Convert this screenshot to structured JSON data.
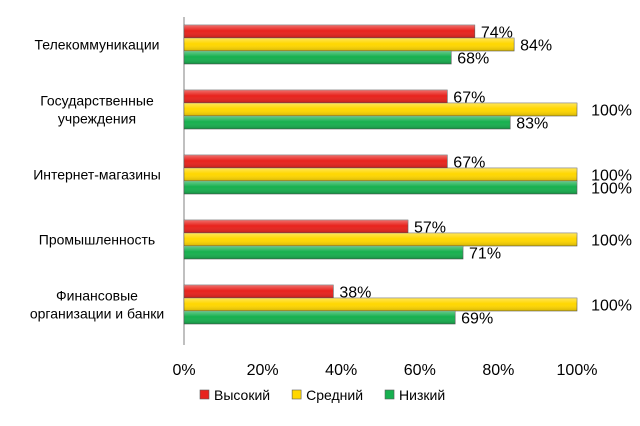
{
  "chart_data": {
    "type": "bar",
    "orientation": "horizontal",
    "categories": [
      [
        "Телекоммуникации"
      ],
      [
        "Государственные",
        "учреждения"
      ],
      [
        "Интернет-магазины"
      ],
      [
        "Промышленность"
      ],
      [
        "Финансовые",
        "организации и банки"
      ]
    ],
    "series": [
      {
        "name": "Высокий",
        "values": [
          74,
          67,
          67,
          57,
          38
        ],
        "color": "#e8231d"
      },
      {
        "name": "Средний",
        "values": [
          84,
          100,
          100,
          100,
          100
        ],
        "color": "#ffd700"
      },
      {
        "name": "Низкий",
        "values": [
          68,
          83,
          100,
          71,
          69
        ],
        "color": "#17b04f"
      }
    ],
    "xlim": [
      0,
      100
    ],
    "xticks": [
      0,
      20,
      40,
      60,
      80,
      100
    ],
    "tick_suffix": "%",
    "grid": false,
    "legend_position": "bottom"
  }
}
